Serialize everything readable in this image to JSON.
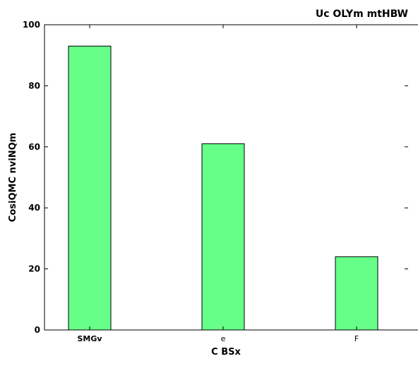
{
  "chart_data": {
    "type": "bar",
    "title": "Uc OLYm mtHBW",
    "xlabel": "C BSx",
    "ylabel": "CosiQMC nviNQm",
    "categories": [
      "SMGv",
      "e",
      "F"
    ],
    "values": [
      93,
      61,
      24
    ],
    "ylim": [
      0,
      100
    ],
    "yticks": [
      0,
      20,
      40,
      60,
      80,
      100
    ],
    "bar_color": "#66ff88",
    "bar_edge_color": "#000000",
    "grid": false,
    "legend": "none"
  }
}
